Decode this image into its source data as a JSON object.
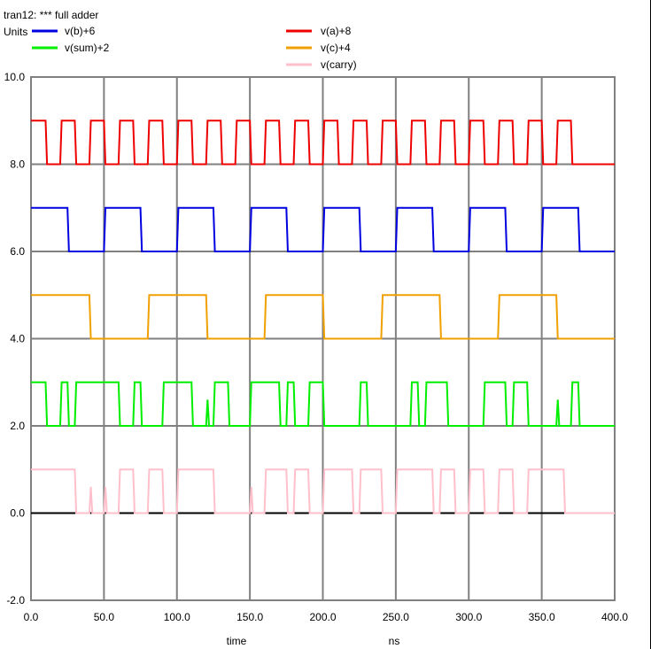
{
  "chart_data": {
    "type": "line",
    "title": "tran12: *** full adder",
    "units_label": "Units",
    "xlabel": "time",
    "xunit": "ns",
    "xlim": [
      0,
      400
    ],
    "ylim": [
      -2,
      10
    ],
    "x_ticks": [
      0,
      50,
      100,
      150,
      200,
      250,
      300,
      350,
      400
    ],
    "x_tick_labels": [
      "0.0",
      "50.0",
      "100.0",
      "150.0",
      "200.0",
      "250.0",
      "300.0",
      "350.0",
      "400.0"
    ],
    "y_ticks": [
      -2,
      0,
      2,
      4,
      6,
      8,
      10
    ],
    "y_tick_labels": [
      "-2.0",
      "0.0",
      "2.0",
      "4.0",
      "6.0",
      "8.0",
      "10.0"
    ],
    "grid": true,
    "legend_position": "top",
    "series": [
      {
        "name": "v(b)+6",
        "color": "#0000e0",
        "points": [
          [
            0,
            7
          ],
          [
            25,
            7
          ],
          [
            26,
            6
          ],
          [
            50,
            6
          ],
          [
            51,
            7
          ],
          [
            75,
            7
          ],
          [
            76,
            6
          ],
          [
            100,
            6
          ],
          [
            101,
            7
          ],
          [
            125,
            7
          ],
          [
            126,
            6
          ],
          [
            150,
            6
          ],
          [
            151,
            7
          ],
          [
            175,
            7
          ],
          [
            176,
            6
          ],
          [
            200,
            6
          ],
          [
            201,
            7
          ],
          [
            225,
            7
          ],
          [
            226,
            6
          ],
          [
            250,
            6
          ],
          [
            251,
            7
          ],
          [
            275,
            7
          ],
          [
            276,
            6
          ],
          [
            300,
            6
          ],
          [
            301,
            7
          ],
          [
            325,
            7
          ],
          [
            326,
            6
          ],
          [
            350,
            6
          ],
          [
            351,
            7
          ],
          [
            375,
            7
          ],
          [
            376,
            6
          ],
          [
            400,
            6
          ]
        ]
      },
      {
        "name": "v(sum)+2",
        "color": "#00ee00",
        "points": [
          [
            0,
            3
          ],
          [
            10,
            3
          ],
          [
            11,
            2
          ],
          [
            20,
            2
          ],
          [
            21,
            3
          ],
          [
            25,
            3
          ],
          [
            26,
            2
          ],
          [
            30,
            2
          ],
          [
            31,
            3
          ],
          [
            60,
            3
          ],
          [
            61,
            2
          ],
          [
            70,
            2
          ],
          [
            71,
            3
          ],
          [
            75,
            3
          ],
          [
            76,
            2
          ],
          [
            90,
            2
          ],
          [
            91,
            3
          ],
          [
            110,
            3
          ],
          [
            111,
            2
          ],
          [
            120,
            2
          ],
          [
            121,
            2.6
          ],
          [
            122,
            2
          ],
          [
            125,
            2
          ],
          [
            126,
            3
          ],
          [
            135,
            3
          ],
          [
            136,
            2
          ],
          [
            150,
            2
          ],
          [
            151,
            3
          ],
          [
            170,
            3
          ],
          [
            171,
            2
          ],
          [
            175,
            2
          ],
          [
            176,
            3
          ],
          [
            180,
            3
          ],
          [
            181,
            2
          ],
          [
            190,
            2
          ],
          [
            191,
            3
          ],
          [
            200,
            3
          ],
          [
            201,
            2
          ],
          [
            225,
            2
          ],
          [
            226,
            3
          ],
          [
            230,
            3
          ],
          [
            231,
            2
          ],
          [
            260,
            2
          ],
          [
            261,
            3
          ],
          [
            265,
            3
          ],
          [
            266,
            2
          ],
          [
            270,
            2
          ],
          [
            271,
            3
          ],
          [
            285,
            3
          ],
          [
            286,
            2
          ],
          [
            310,
            2
          ],
          [
            311,
            3
          ],
          [
            325,
            3
          ],
          [
            326,
            2
          ],
          [
            330,
            2
          ],
          [
            331,
            3
          ],
          [
            340,
            3
          ],
          [
            341,
            2
          ],
          [
            360,
            2
          ],
          [
            361,
            2.6
          ],
          [
            362,
            2
          ],
          [
            370,
            2
          ],
          [
            371,
            3
          ],
          [
            375,
            3
          ],
          [
            376,
            2
          ],
          [
            400,
            2
          ]
        ]
      },
      {
        "name": "v(a)+8",
        "color": "#ee0000",
        "points": [
          [
            0,
            9
          ],
          [
            10,
            9
          ],
          [
            11,
            8
          ],
          [
            20,
            8
          ],
          [
            21,
            9
          ],
          [
            30,
            9
          ],
          [
            31,
            8
          ],
          [
            40,
            8
          ],
          [
            41,
            9
          ],
          [
            50,
            9
          ],
          [
            51,
            8
          ],
          [
            60,
            8
          ],
          [
            61,
            9
          ],
          [
            70,
            9
          ],
          [
            71,
            8
          ],
          [
            80,
            8
          ],
          [
            81,
            9
          ],
          [
            90,
            9
          ],
          [
            91,
            8
          ],
          [
            100,
            8
          ],
          [
            101,
            9
          ],
          [
            110,
            9
          ],
          [
            111,
            8
          ],
          [
            120,
            8
          ],
          [
            121,
            9
          ],
          [
            130,
            9
          ],
          [
            131,
            8
          ],
          [
            140,
            8
          ],
          [
            141,
            9
          ],
          [
            150,
            9
          ],
          [
            151,
            8
          ],
          [
            160,
            8
          ],
          [
            161,
            9
          ],
          [
            170,
            9
          ],
          [
            171,
            8
          ],
          [
            180,
            8
          ],
          [
            181,
            9
          ],
          [
            190,
            9
          ],
          [
            191,
            8
          ],
          [
            200,
            8
          ],
          [
            201,
            9
          ],
          [
            210,
            9
          ],
          [
            211,
            8
          ],
          [
            220,
            8
          ],
          [
            221,
            9
          ],
          [
            230,
            9
          ],
          [
            231,
            8
          ],
          [
            240,
            8
          ],
          [
            241,
            9
          ],
          [
            250,
            9
          ],
          [
            251,
            8
          ],
          [
            260,
            8
          ],
          [
            261,
            9
          ],
          [
            270,
            9
          ],
          [
            271,
            8
          ],
          [
            280,
            8
          ],
          [
            281,
            9
          ],
          [
            290,
            9
          ],
          [
            291,
            8
          ],
          [
            300,
            8
          ],
          [
            301,
            9
          ],
          [
            310,
            9
          ],
          [
            311,
            8
          ],
          [
            320,
            8
          ],
          [
            321,
            9
          ],
          [
            330,
            9
          ],
          [
            331,
            8
          ],
          [
            340,
            8
          ],
          [
            341,
            9
          ],
          [
            350,
            9
          ],
          [
            351,
            8
          ],
          [
            360,
            8
          ],
          [
            361,
            9
          ],
          [
            370,
            9
          ],
          [
            371,
            8
          ],
          [
            400,
            8
          ]
        ]
      },
      {
        "name": "v(c)+4",
        "color": "#f0a000",
        "points": [
          [
            0,
            5
          ],
          [
            40,
            5
          ],
          [
            41,
            4
          ],
          [
            80,
            4
          ],
          [
            81,
            5
          ],
          [
            120,
            5
          ],
          [
            121,
            4
          ],
          [
            160,
            4
          ],
          [
            161,
            5
          ],
          [
            200,
            5
          ],
          [
            201,
            4
          ],
          [
            240,
            4
          ],
          [
            241,
            5
          ],
          [
            280,
            5
          ],
          [
            281,
            4
          ],
          [
            320,
            4
          ],
          [
            321,
            5
          ],
          [
            360,
            5
          ],
          [
            361,
            4
          ],
          [
            400,
            4
          ]
        ]
      },
      {
        "name": "v(carry)",
        "color": "#ffc0cb",
        "points": [
          [
            0,
            1
          ],
          [
            30,
            1
          ],
          [
            31,
            0
          ],
          [
            40,
            0
          ],
          [
            41,
            0.6
          ],
          [
            42,
            0
          ],
          [
            50,
            0
          ],
          [
            51,
            0.6
          ],
          [
            52,
            0
          ],
          [
            60,
            0
          ],
          [
            61,
            1
          ],
          [
            70,
            1
          ],
          [
            71,
            0
          ],
          [
            80,
            0
          ],
          [
            81,
            1
          ],
          [
            90,
            1
          ],
          [
            91,
            0
          ],
          [
            100,
            0
          ],
          [
            101,
            1
          ],
          [
            125,
            1
          ],
          [
            126,
            0
          ],
          [
            150,
            0
          ],
          [
            151,
            0.6
          ],
          [
            152,
            0
          ],
          [
            160,
            0
          ],
          [
            161,
            1
          ],
          [
            175,
            1
          ],
          [
            176,
            0
          ],
          [
            180,
            0
          ],
          [
            181,
            1
          ],
          [
            190,
            1
          ],
          [
            191,
            0
          ],
          [
            200,
            0
          ],
          [
            201,
            1
          ],
          [
            220,
            1
          ],
          [
            221,
            0
          ],
          [
            225,
            0
          ],
          [
            226,
            1
          ],
          [
            240,
            1
          ],
          [
            241,
            0
          ],
          [
            250,
            0
          ],
          [
            251,
            1
          ],
          [
            275,
            1
          ],
          [
            276,
            0
          ],
          [
            280,
            0
          ],
          [
            281,
            1
          ],
          [
            290,
            1
          ],
          [
            291,
            0
          ],
          [
            300,
            0
          ],
          [
            301,
            1
          ],
          [
            310,
            1
          ],
          [
            311,
            0
          ],
          [
            320,
            0
          ],
          [
            321,
            1
          ],
          [
            330,
            1
          ],
          [
            331,
            0
          ],
          [
            340,
            0
          ],
          [
            341,
            1
          ],
          [
            365,
            1
          ],
          [
            366,
            0
          ],
          [
            400,
            0
          ]
        ]
      }
    ],
    "legend_rows": [
      [
        0,
        2
      ],
      [
        1,
        3
      ],
      [
        null,
        4
      ]
    ]
  }
}
